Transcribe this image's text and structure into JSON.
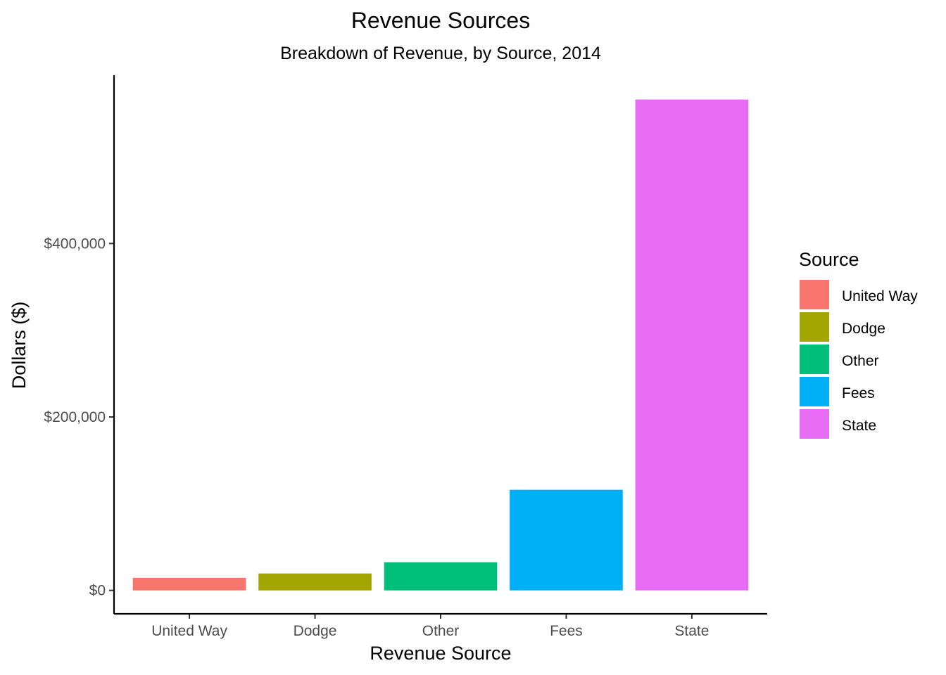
{
  "chart_data": {
    "type": "bar",
    "title": "Revenue Sources",
    "subtitle": "Breakdown of Revenue, by Source, 2014",
    "xlabel": "Revenue Source",
    "ylabel": "Dollars ($)",
    "categories": [
      "United Way",
      "Dodge",
      "Other",
      "Fees",
      "State"
    ],
    "values": [
      14500,
      19500,
      32500,
      116000,
      566000
    ],
    "colors": [
      "#F8766D",
      "#A3A500",
      "#00BF7D",
      "#00B0F6",
      "#E76BF3"
    ],
    "ylim": [
      -27000,
      594000
    ],
    "yticks": [
      0,
      200000,
      400000
    ],
    "ytick_labels": [
      "$0",
      "$200,000",
      "$400,000"
    ],
    "grid": false,
    "legend": {
      "title": "Source",
      "position": "right",
      "items": [
        "United Way",
        "Dodge",
        "Other",
        "Fees",
        "State"
      ]
    }
  }
}
